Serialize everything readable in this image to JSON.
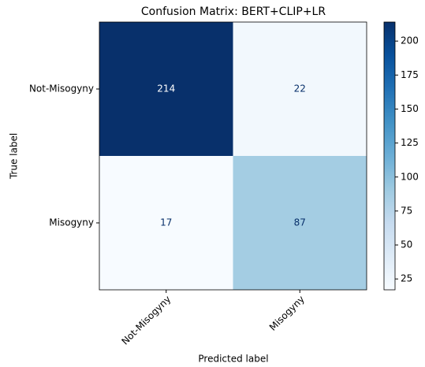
{
  "chart_data": {
    "type": "heatmap",
    "title": "Confusion Matrix: BERT+CLIP+LR",
    "xlabel": "Predicted label",
    "ylabel": "True label",
    "x_categories": [
      "Not-Misogyny",
      "Misogyny"
    ],
    "y_categories": [
      "Not-Misogyny",
      "Misogyny"
    ],
    "values": [
      [
        214,
        22
      ],
      [
        17,
        87
      ]
    ],
    "colormap": "Blues",
    "clim": [
      17,
      214
    ],
    "cticks": [
      25,
      50,
      75,
      100,
      125,
      150,
      175,
      200
    ]
  }
}
